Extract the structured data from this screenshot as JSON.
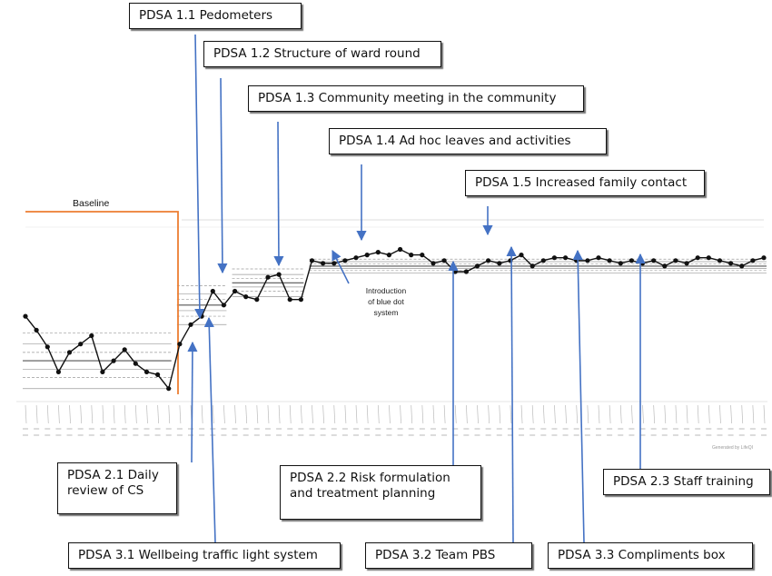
{
  "chart_data": {
    "type": "line",
    "title": "",
    "xlabel": "",
    "ylabel": "",
    "annotations": {
      "baseline": "Baseline",
      "note_lines": [
        "Introduction",
        "of blue dot",
        "system"
      ]
    },
    "series": [
      {
        "values": [
          88,
          83,
          77,
          68,
          75,
          78,
          81,
          68,
          72,
          76,
          71,
          68,
          67,
          62,
          78,
          85,
          88,
          97,
          92,
          97,
          95,
          94,
          102,
          103,
          94,
          94,
          108,
          107,
          107,
          108,
          109,
          110,
          111,
          110,
          112,
          110,
          110,
          107,
          108,
          104,
          104,
          106,
          108,
          107,
          108,
          110,
          106,
          108,
          109,
          109,
          108,
          108,
          109,
          108,
          107,
          108,
          107,
          108,
          106,
          108,
          107,
          109,
          109,
          108,
          107,
          106,
          108,
          109
        ]
      }
    ],
    "ylim": [
      58,
      120
    ],
    "grid": false,
    "legend": "none"
  },
  "callouts": {
    "p11": "PDSA 1.1 Pedometers",
    "p12": "PDSA 1.2 Structure of ward round",
    "p13": "PDSA 1.3 Community meeting in the community",
    "p14": "PDSA 1.4 Ad hoc leaves and activities",
    "p15": "PDSA 1.5 Increased family contact",
    "p21_l1": "PDSA 2.1 Daily",
    "p21_l2": "review of CS",
    "p22_l1": "PDSA 2.2 Risk formulation",
    "p22_l2": "and treatment planning",
    "p23": "PDSA 2.3 Staff training",
    "p31": "PDSA 3.1 Wellbeing traffic light system",
    "p32": "PDSA 3.2 Team PBS",
    "p33": "PDSA 3.3 Compliments box"
  },
  "colors": {
    "line": "#111111",
    "baseline_marker": "#ed7d31",
    "arrow": "#4472c4",
    "limits": "#9a9a9a",
    "mean": "#555555"
  },
  "generated_by": "Generated by LifeQI"
}
